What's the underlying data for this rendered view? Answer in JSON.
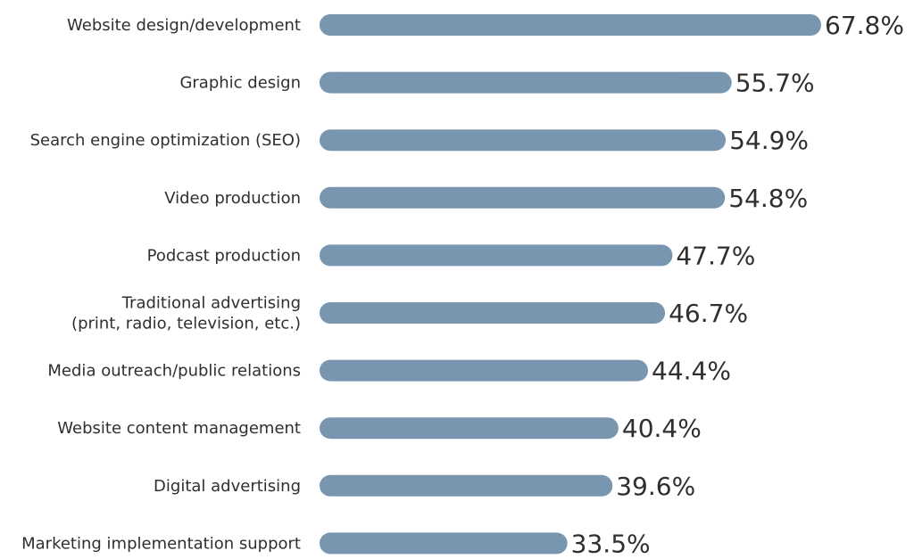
{
  "chart_data": {
    "type": "bar",
    "orientation": "horizontal",
    "bar_color": "#7896b0",
    "xlim": [
      0,
      67.8
    ],
    "grid": false,
    "categories": [
      "Website design/development",
      "Graphic design",
      "Search engine optimization (SEO)",
      "Video production",
      "Podcast production",
      "Traditional advertising\n(print, radio, television, etc.)",
      "Media outreach/public relations",
      "Website content management",
      "Digital advertising",
      "Marketing implementation support"
    ],
    "values": [
      67.8,
      55.7,
      54.9,
      54.8,
      47.7,
      46.7,
      44.4,
      40.4,
      39.6,
      33.5
    ],
    "value_labels": [
      "67.8%",
      "55.7%",
      "54.9%",
      "54.8%",
      "47.7%",
      "46.7%",
      "44.4%",
      "40.4%",
      "39.6%",
      "33.5%"
    ]
  }
}
